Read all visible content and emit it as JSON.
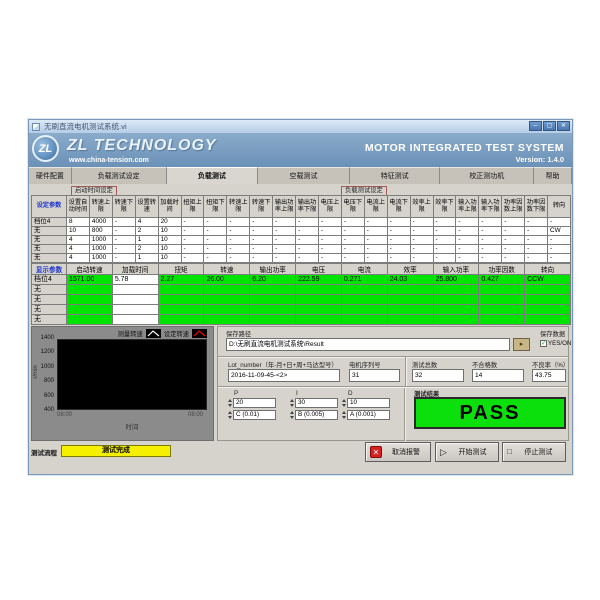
{
  "window": {
    "title": "无刷直流电机测试系统.vi",
    "brand": "ZL TECHNOLOGY",
    "website": "www.china-tension.com",
    "product": "MOTOR INTEGRATED TEST SYSTEM",
    "version": "Version: 1.4.0"
  },
  "icons": {
    "minimize": "─",
    "maximize": "▢",
    "close": "✕",
    "cancel_x": "✕",
    "play": "▷",
    "stop": "□",
    "check": "✓",
    "browse_arrow": "▸"
  },
  "colors": {
    "pass_green": "#0ce00c",
    "row_green": "#00e400",
    "status_yellow": "#f4f000",
    "banner_blue": "#6b91b8",
    "legend_measured": "#ffffff",
    "legend_set": "#ff0000"
  },
  "tabs": {
    "items": [
      "硬件配置",
      "负载测试设定",
      "负载测试",
      "空载测试",
      "特征测试",
      "校正测功机",
      "帮助"
    ],
    "active": "负载测试"
  },
  "group_labels": {
    "left": "启动时间设定",
    "right": "负载测试设定"
  },
  "settings_table": {
    "corner": "设定参数",
    "headers": [
      "设置自动时间",
      "转速上限",
      "转速下限",
      "设置转速",
      "加载时间",
      "扭矩上限",
      "扭矩下限",
      "转速上限",
      "转速下限",
      "输出功率上限",
      "输出功率下限",
      "电压上限",
      "电压下限",
      "电流上限",
      "电流下限",
      "效率上限",
      "效率下限",
      "输入功率上限",
      "输入功率下限",
      "功率因数上限",
      "功率因数下限",
      "转向"
    ],
    "rows": [
      {
        "label": "档位4",
        "values": [
          "8",
          "4000",
          "-",
          "4",
          "20",
          "-",
          "-",
          "-",
          "-",
          "-",
          "-",
          "-",
          "-",
          "-",
          "-",
          "-",
          "-",
          "-",
          "-",
          "-",
          "-",
          "-"
        ]
      },
      {
        "label": "无",
        "values": [
          "10",
          "800",
          "-",
          "2",
          "10",
          "-",
          "-",
          "-",
          "-",
          "-",
          "-",
          "-",
          "-",
          "-",
          "-",
          "-",
          "-",
          "-",
          "-",
          "-",
          "-",
          "CW"
        ]
      },
      {
        "label": "无",
        "values": [
          "4",
          "1000",
          "-",
          "1",
          "10",
          "-",
          "-",
          "-",
          "-",
          "-",
          "-",
          "-",
          "-",
          "-",
          "-",
          "-",
          "-",
          "-",
          "-",
          "-",
          "-",
          "-"
        ]
      },
      {
        "label": "无",
        "values": [
          "4",
          "1000",
          "-",
          "2",
          "10",
          "-",
          "-",
          "-",
          "-",
          "-",
          "-",
          "-",
          "-",
          "-",
          "-",
          "-",
          "-",
          "-",
          "-",
          "-",
          "-",
          "-"
        ]
      },
      {
        "label": "无",
        "values": [
          "4",
          "1000",
          "-",
          "1",
          "10",
          "-",
          "-",
          "-",
          "-",
          "-",
          "-",
          "-",
          "-",
          "-",
          "-",
          "-",
          "-",
          "-",
          "-",
          "-",
          "-",
          "-"
        ]
      }
    ]
  },
  "display_table": {
    "corner": "显示参数",
    "headers": [
      "启动转速",
      "加载时间",
      "扭矩",
      "转速",
      "输出功率",
      "电压",
      "电流",
      "效率",
      "输入功率",
      "功率因数",
      "转向"
    ],
    "rows": [
      {
        "label": "档位4",
        "values": [
          "1571.00",
          "5.78",
          "2.27",
          "26.00",
          "6.20",
          "222.59",
          "0.271",
          "24.03",
          "25.800",
          "0.427",
          "CCW"
        ]
      },
      {
        "label": "无",
        "values": [
          "",
          "",
          "",
          "",
          "",
          "",
          "",
          "",
          "",
          "",
          ""
        ]
      },
      {
        "label": "无",
        "values": [
          "",
          "",
          "",
          "",
          "",
          "",
          "",
          "",
          "",
          "",
          ""
        ]
      },
      {
        "label": "无",
        "values": [
          "",
          "",
          "",
          "",
          "",
          "",
          "",
          "",
          "",
          "",
          ""
        ]
      },
      {
        "label": "无",
        "values": [
          "",
          "",
          "",
          "",
          "",
          "",
          "",
          "",
          "",
          "",
          ""
        ]
      }
    ]
  },
  "chart": {
    "legend": [
      {
        "label": "测量转速",
        "color": "#ffffff"
      },
      {
        "label": "设定转速",
        "color": "#ff0000"
      }
    ],
    "y_ticks": [
      "1400",
      "1200",
      "1000",
      "800",
      "600",
      "400"
    ],
    "y_label": "r/min",
    "x_tick_left": "08:00",
    "x_tick_right": "08:00",
    "x_label": "时间"
  },
  "save_section": {
    "path_label": "保存路径",
    "path_value": "D:\\无刷直流电机测试系统\\Result",
    "save_data_label": "保存数据",
    "checkbox_label": "YES/ON"
  },
  "lot_section": {
    "lot_label": "Lot_number（年-月+日+周+马达型号）",
    "lot_value": "2016-11-09-45-<2>",
    "serial_label": "电机序列号",
    "serial_value": "31"
  },
  "stats_section": {
    "total_label": "测试总数",
    "total_value": "32",
    "fail_label": "不合格数",
    "fail_value": "14",
    "rate_label": "不良率（%）",
    "rate_value": "43.75"
  },
  "pid_section": {
    "p": {
      "label": "P",
      "value": "20",
      "gain": "C (0.01)"
    },
    "i": {
      "label": "I",
      "value": "30",
      "gain": "B (0.005)"
    },
    "d": {
      "label": "D",
      "value": "10",
      "gain": "A (0.001)"
    }
  },
  "result_section": {
    "label": "测试结果",
    "value": "PASS"
  },
  "flow_section": {
    "label": "测试流程",
    "status": "测试完成"
  },
  "action_buttons": {
    "cancel": "取消报警",
    "start": "开始测试",
    "stop": "停止测试"
  }
}
